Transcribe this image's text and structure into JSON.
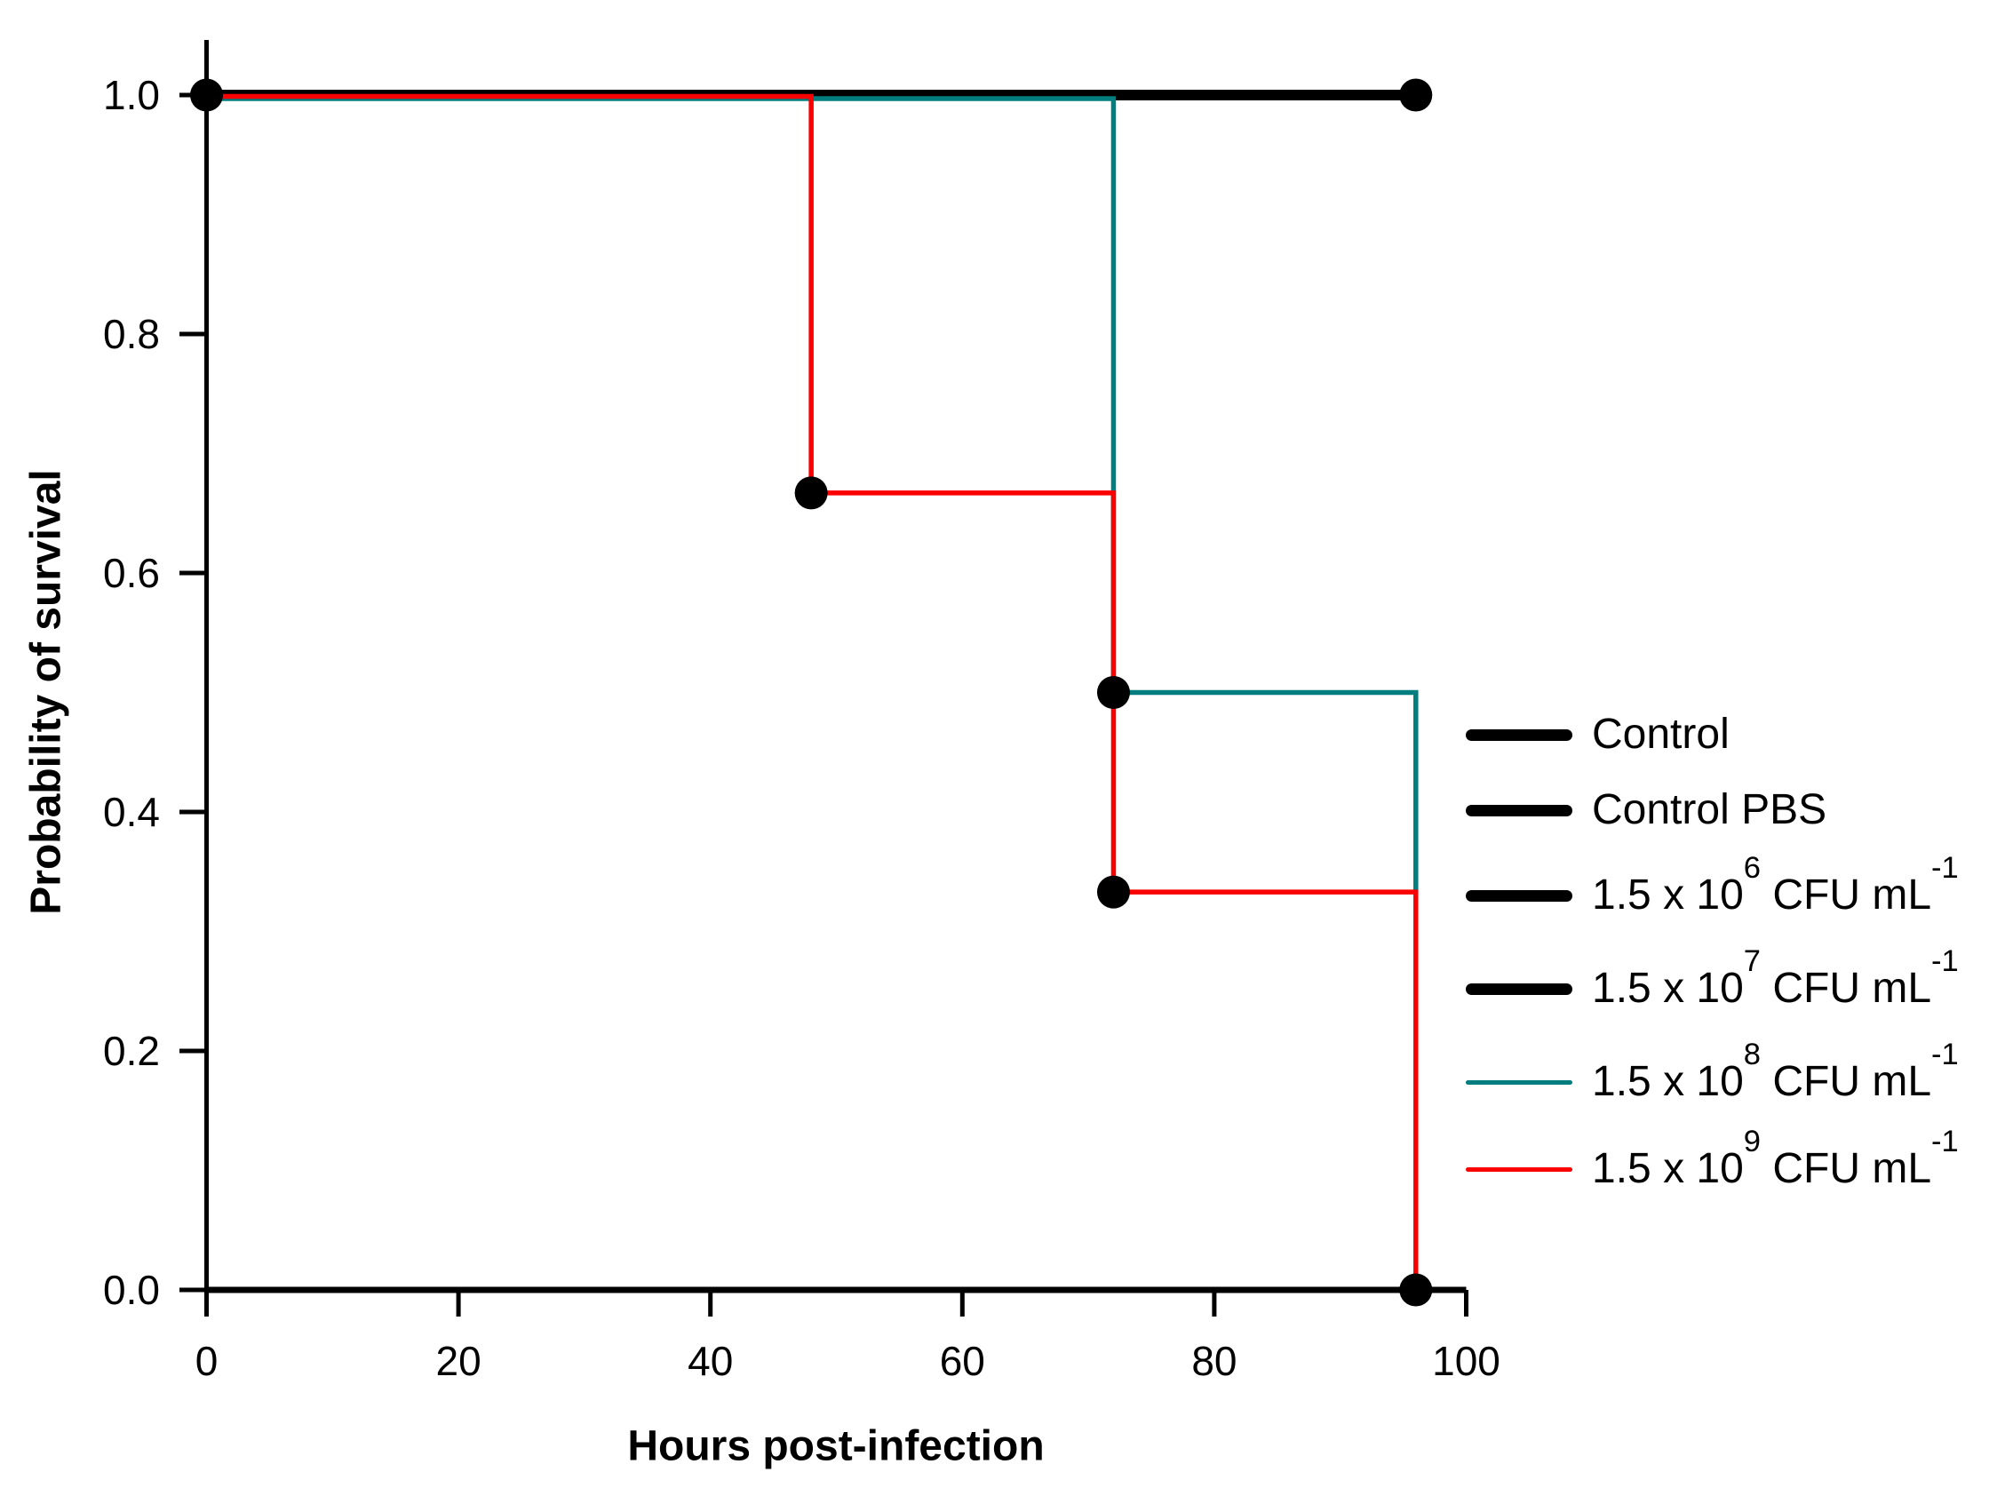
{
  "figure": {
    "background": "#ffffff"
  },
  "chart_data": {
    "type": "line",
    "subtype": "kaplan-meier-step-survival",
    "title": "",
    "xlabel": "Hours post-infection",
    "ylabel": "Probability of survival",
    "grid": false,
    "legend_position": "right-inside",
    "x_axis": {
      "range": [
        0,
        100
      ],
      "ticks": [
        0,
        20,
        40,
        60,
        80,
        100
      ]
    },
    "y_axis": {
      "range": [
        0,
        1
      ],
      "ticks": [
        "1.0",
        "0.8",
        "0.6",
        "0.4",
        "0.2",
        "0.0"
      ]
    },
    "axis_color": "#000000",
    "series": [
      {
        "name": "Control",
        "label_parts": [
          {
            "text": "Control"
          }
        ],
        "color": "#000000",
        "line_width": "thick",
        "points": [
          [
            0,
            1.0
          ],
          [
            96,
            1.0
          ]
        ]
      },
      {
        "name": "Control PBS",
        "label_parts": [
          {
            "text": "Control PBS"
          }
        ],
        "color": "#000000",
        "line_width": "thick",
        "points": [
          [
            0,
            1.0
          ],
          [
            96,
            1.0
          ]
        ]
      },
      {
        "name": "1.5 x 10^6 CFU mL^-1",
        "label_parts": [
          {
            "text": "1.5 x 10"
          },
          {
            "sup": "6"
          },
          {
            "text": " CFU mL"
          },
          {
            "sup": "-1"
          }
        ],
        "color": "#000000",
        "line_width": "thick",
        "points": [
          [
            0,
            1.0
          ],
          [
            96,
            1.0
          ]
        ]
      },
      {
        "name": "1.5 x 10^7 CFU mL^-1",
        "label_parts": [
          {
            "text": "1.5 x 10"
          },
          {
            "sup": "7"
          },
          {
            "text": " CFU mL"
          },
          {
            "sup": "-1"
          }
        ],
        "color": "#000000",
        "line_width": "thick",
        "points": [
          [
            0,
            1.0
          ],
          [
            96,
            1.0
          ]
        ]
      },
      {
        "name": "1.5 x 10^8 CFU mL^-1",
        "label_parts": [
          {
            "text": "1.5 x 10"
          },
          {
            "sup": "8"
          },
          {
            "text": " CFU mL"
          },
          {
            "sup": "-1"
          }
        ],
        "color": "#007d7e",
        "line_width": "thin",
        "points": [
          [
            0,
            1.0
          ],
          [
            72,
            1.0
          ],
          [
            72,
            0.5
          ],
          [
            96,
            0.5
          ],
          [
            96,
            0.333
          ]
        ]
      },
      {
        "name": "1.5 x 10^9 CFU mL^-1",
        "label_parts": [
          {
            "text": "1.5 x 10"
          },
          {
            "sup": "9"
          },
          {
            "text": " CFU mL"
          },
          {
            "sup": "-1"
          }
        ],
        "color": "#fa0000",
        "line_width": "thin",
        "points": [
          [
            0,
            1.0
          ],
          [
            48,
            1.0
          ],
          [
            48,
            0.667
          ],
          [
            72,
            0.667
          ],
          [
            72,
            0.333
          ],
          [
            96,
            0.333
          ],
          [
            96,
            0.0
          ]
        ]
      }
    ],
    "markers": {
      "color": "#000000",
      "points": [
        [
          0,
          1.0
        ],
        [
          96,
          1.0
        ],
        [
          48,
          0.667
        ],
        [
          72,
          0.5
        ],
        [
          72,
          0.333
        ],
        [
          96,
          0.0
        ]
      ]
    }
  }
}
